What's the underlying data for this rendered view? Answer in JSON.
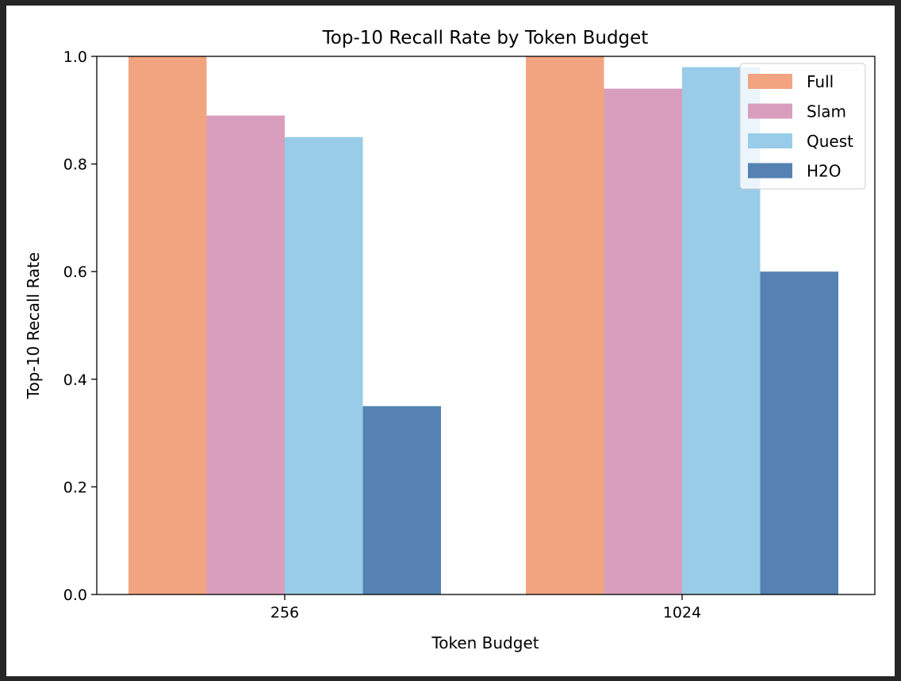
{
  "chart_data": {
    "type": "bar",
    "title": "Top-10 Recall Rate by Token Budget",
    "xlabel": "Token Budget",
    "ylabel": "Top-10 Recall Rate",
    "categories": [
      "256",
      "1024"
    ],
    "ylim": [
      0,
      1
    ],
    "yticks": [
      "0.0",
      "0.2",
      "0.4",
      "0.6",
      "0.8",
      "1.0"
    ],
    "series": [
      {
        "name": "Full",
        "color": "#F2A480",
        "values": [
          1.0,
          1.0
        ]
      },
      {
        "name": "Slam",
        "color": "#D99EBD",
        "values": [
          0.89,
          0.94
        ]
      },
      {
        "name": "Quest",
        "color": "#99CCE8",
        "values": [
          0.85,
          0.98
        ]
      },
      {
        "name": "H2O",
        "color": "#5582B3",
        "values": [
          0.35,
          0.6
        ]
      }
    ],
    "legend_position": "upper-right",
    "grid": false
  }
}
